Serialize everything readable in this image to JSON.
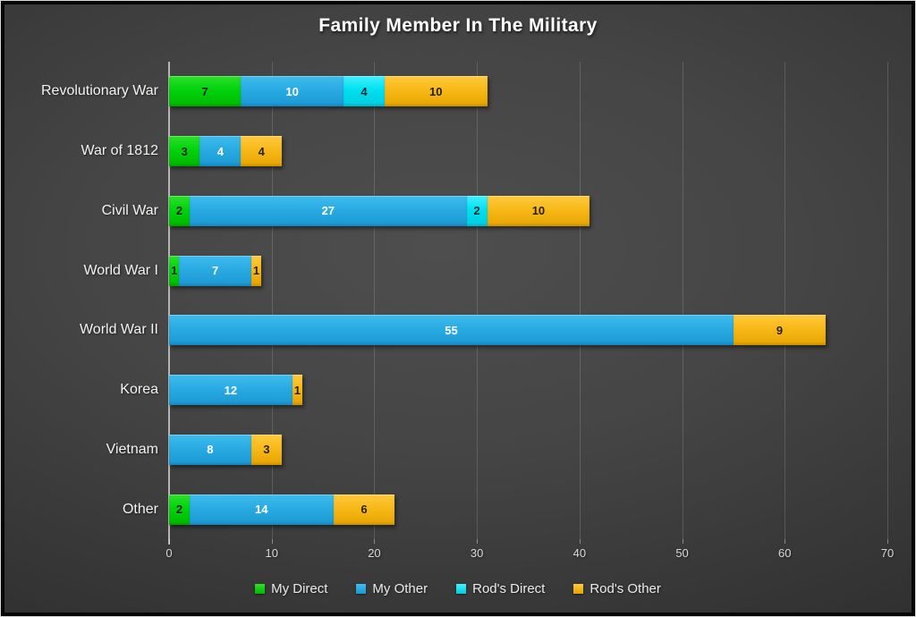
{
  "chart_data": {
    "type": "bar",
    "orientation": "horizontal",
    "stacked": true,
    "title": "Family Member In The Military",
    "categories": [
      "Revolutionary War",
      "War of 1812",
      "Civil War",
      "World War I",
      "World War II",
      "Korea",
      "Vietnam",
      "Other"
    ],
    "series": [
      {
        "name": "My Direct",
        "color": "#00D30D",
        "color_top": "#2FE02A",
        "color_bottom": "#00B800",
        "label_color": "#142014",
        "values": [
          7,
          3,
          2,
          1,
          0,
          0,
          0,
          2
        ]
      },
      {
        "name": "My Other",
        "color": "#29ABE2",
        "color_top": "#3FBCEF",
        "color_bottom": "#1B97D3",
        "label_color": "#FFFFFF",
        "values": [
          10,
          4,
          27,
          7,
          55,
          12,
          8,
          14
        ]
      },
      {
        "name": "Rod's Direct",
        "color": "#00E0F0",
        "color_top": "#43F0FF",
        "color_bottom": "#00CCE0",
        "label_color": "#0F282B",
        "values": [
          4,
          0,
          2,
          0,
          0,
          0,
          0,
          0
        ]
      },
      {
        "name": "Rod's Other",
        "color": "#F8B918",
        "color_top": "#FFCA3E",
        "color_bottom": "#E6A400",
        "label_color": "#262007",
        "values": [
          10,
          4,
          10,
          1,
          9,
          1,
          3,
          6
        ]
      }
    ],
    "x_axis": {
      "min": 0,
      "max": 70,
      "tick_interval": 10,
      "tick_labels": [
        "0",
        "10",
        "20",
        "30",
        "40",
        "50",
        "60",
        "70"
      ]
    },
    "legend": {
      "position": "bottom",
      "entries": [
        "My Direct",
        "My Other",
        "Rod's Direct",
        "Rod's Other"
      ]
    },
    "grid": true,
    "style": {
      "background_center": "#4E4E4E",
      "background_edge": "#262626",
      "axis_line_color": "#B5B5B5",
      "gridline_color": "rgba(255,255,255,0.15)",
      "tick_label_color": "#D9D9D9",
      "category_label_color": "#F2F2F2",
      "title_color": "#FFFFFF",
      "legend_text_color": "#EAEAEA"
    }
  }
}
